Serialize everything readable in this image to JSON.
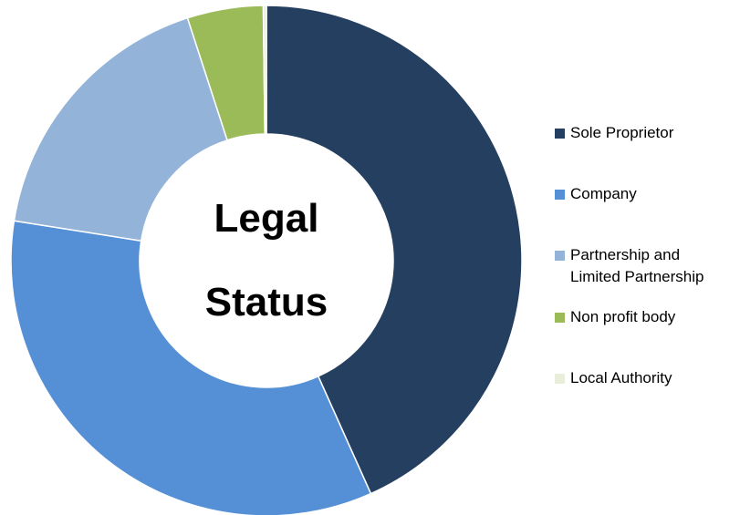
{
  "chart_data": {
    "type": "donut",
    "title": "Legal Status",
    "categories": [
      "Sole Proprietor",
      "Company",
      "Partnership and Limited Partnership",
      "Non profit body",
      "Local Authority"
    ],
    "values": [
      43.3,
      34.2,
      17.5,
      4.8,
      0.2
    ],
    "colors": [
      "#253f60",
      "#5590d6",
      "#93b3d9",
      "#9bbb59",
      "#e9eedb"
    ],
    "legend": "right"
  }
}
